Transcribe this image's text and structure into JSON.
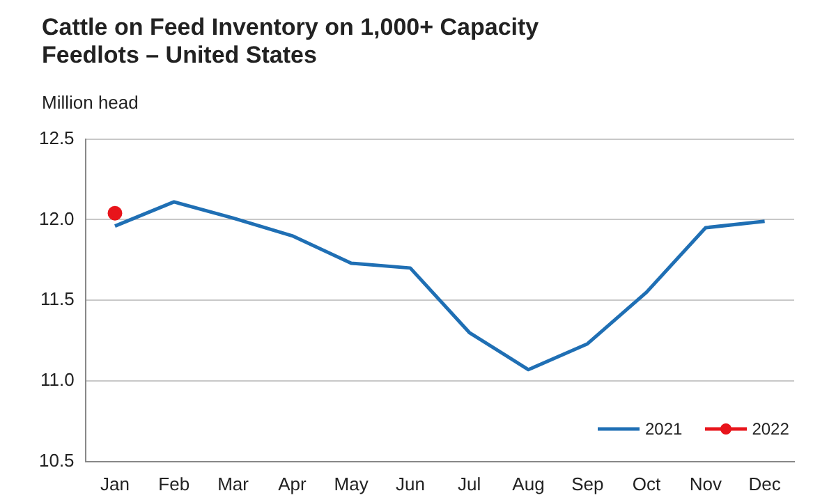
{
  "chart_data": {
    "type": "line",
    "title": "Cattle on Feed Inventory on 1,000+ Capacity Feedlots – United States",
    "ylabel": "Million head",
    "categories": [
      "Jan",
      "Feb",
      "Mar",
      "Apr",
      "May",
      "Jun",
      "Jul",
      "Aug",
      "Sep",
      "Oct",
      "Nov",
      "Dec"
    ],
    "series": [
      {
        "name": "2021",
        "color": "#1f6fb4",
        "marker": "none",
        "values": [
          11.96,
          12.11,
          12.01,
          11.9,
          11.73,
          11.7,
          11.3,
          11.07,
          11.23,
          11.55,
          11.95,
          11.99
        ]
      },
      {
        "name": "2022",
        "color": "#e8141b",
        "marker": "circle",
        "values": [
          12.04,
          null,
          null,
          null,
          null,
          null,
          null,
          null,
          null,
          null,
          null,
          null
        ]
      }
    ],
    "ylim": [
      10.5,
      12.5
    ],
    "yticks": [
      10.5,
      {
        "value": 11,
        "label": "11.0"
      },
      11.5,
      {
        "value": 12,
        "label": "12.0"
      },
      12.5
    ],
    "grid": "y",
    "legend": "bottom right",
    "line_style": "solid"
  }
}
